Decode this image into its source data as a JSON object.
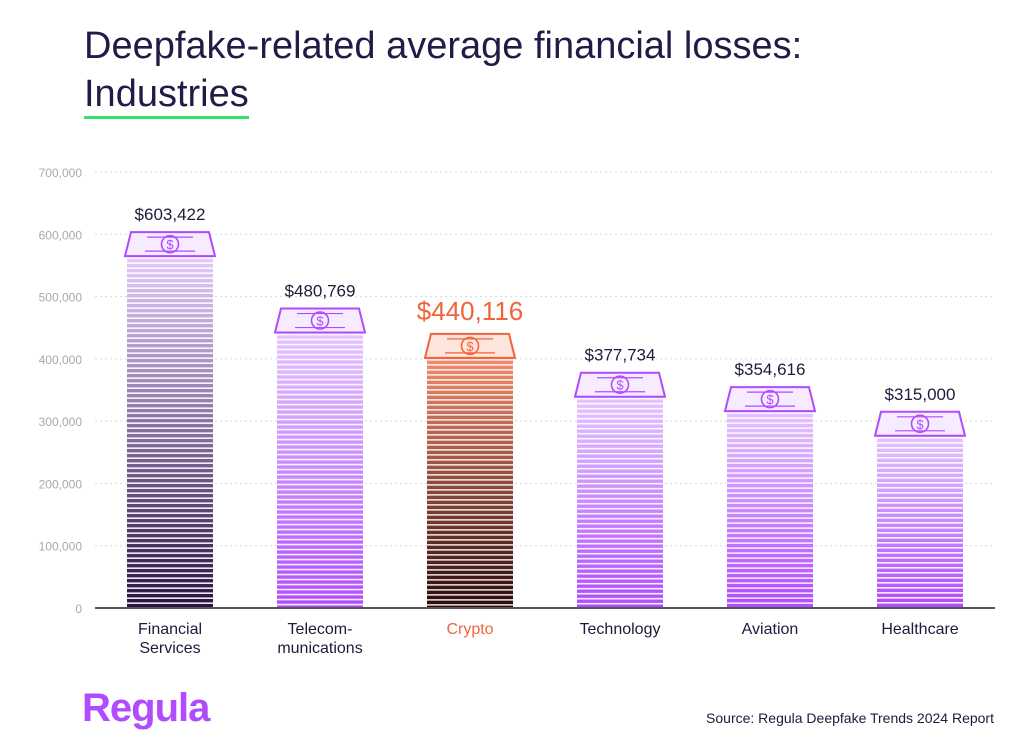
{
  "title": {
    "line1": "Deepfake-related average financial losses:",
    "line2": "Industries"
  },
  "brand": "Regula",
  "source": "Source: Regula Deepfake Trends 2024 Report",
  "colors": {
    "title_underline": "#35e06a",
    "bar_purple": "#b04bff",
    "bar_dark": "#2a1140",
    "highlight": "#f0643c",
    "highlight_dark": "#2a0a0a",
    "grid": "#d8d8d8",
    "axis": "#555555"
  },
  "chart_data": {
    "type": "bar",
    "categories": [
      [
        "Financial",
        "Services"
      ],
      [
        "Telecom-",
        "munications"
      ],
      [
        "Crypto"
      ],
      [
        "Technology"
      ],
      [
        "Aviation"
      ],
      [
        "Healthcare"
      ]
    ],
    "values": [
      603422,
      480769,
      440116,
      377734,
      354616,
      315000
    ],
    "value_labels": [
      "$603,422",
      "$480,769",
      "$440,116",
      "$377,734",
      "$354,616",
      "$315,000"
    ],
    "highlighted_index": 2,
    "dark_index": 0,
    "ylim": [
      0,
      700000
    ],
    "yticks": [
      0,
      100000,
      200000,
      300000,
      400000,
      500000,
      600000,
      700000
    ],
    "ytick_labels": [
      "0",
      "100,000",
      "200,000",
      "300,000",
      "400,000",
      "500,000",
      "600,000",
      "700,000"
    ],
    "grid": true,
    "bar_icon": "dollar-banknote-icon"
  }
}
